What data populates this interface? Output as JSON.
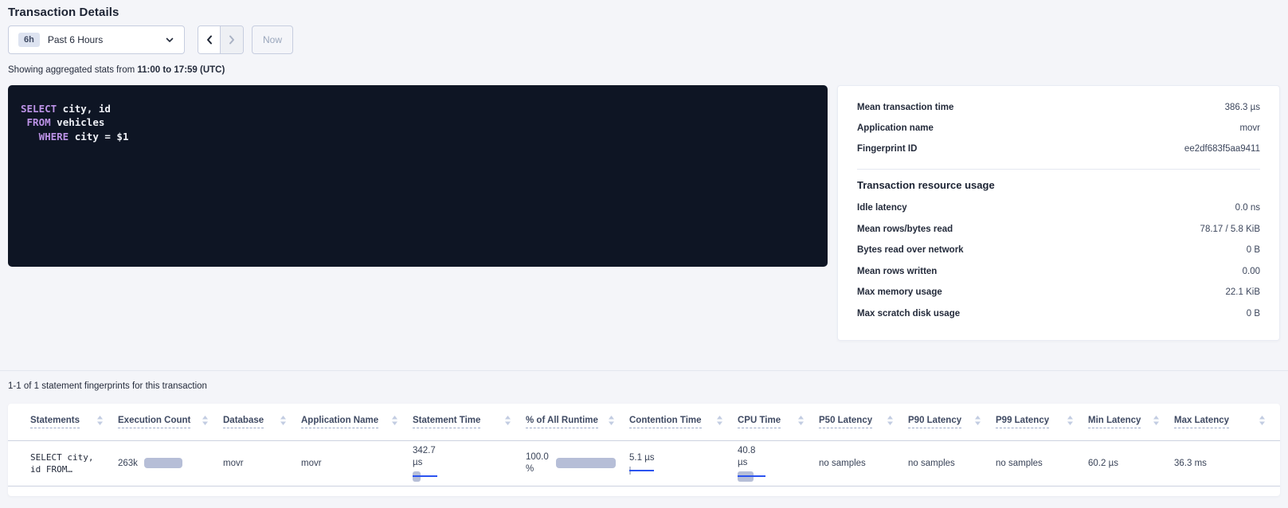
{
  "page": {
    "title": "Transaction Details"
  },
  "toolbar": {
    "time_badge": "6h",
    "time_label": "Past 6 Hours",
    "now_label": "Now"
  },
  "subtitle": {
    "prefix": "Showing aggregated stats from ",
    "range": "11:00 to 17:59 (UTC)"
  },
  "sql": {
    "text": "SELECT city, id\n FROM vehicles\n   WHERE city = $1",
    "keywords": [
      "SELECT",
      "FROM",
      "WHERE"
    ]
  },
  "summary": {
    "rows": [
      {
        "label": "Mean transaction time",
        "value": "386.3 µs"
      },
      {
        "label": "Application name",
        "value": "movr"
      },
      {
        "label": "Fingerprint ID",
        "value": "ee2df683f5aa9411"
      }
    ],
    "section_title": "Transaction resource usage",
    "resource_rows": [
      {
        "label": "Idle latency",
        "value": "0.0 ns"
      },
      {
        "label": "Mean rows/bytes read",
        "value": "78.17 / 5.8 KiB"
      },
      {
        "label": "Bytes read over network",
        "value": "0 B"
      },
      {
        "label": "Mean rows written",
        "value": "0.00"
      },
      {
        "label": "Max memory usage",
        "value": "22.1 KiB"
      },
      {
        "label": "Max scratch disk usage",
        "value": "0 B"
      }
    ]
  },
  "statements_section": {
    "count_text": "1-1 of 1 statement fingerprints for this transaction"
  },
  "table": {
    "columns": [
      "Statements",
      "Execution Count",
      "Database",
      "Application Name",
      "Statement Time",
      "% of All Runtime",
      "Contention Time",
      "CPU Time",
      "P50 Latency",
      "P90 Latency",
      "P99 Latency",
      "Min Latency",
      "Max Latency"
    ],
    "row": {
      "statement_line1": "SELECT city,",
      "statement_line2": "id FROM…",
      "execution_count": "263k",
      "database": "movr",
      "application_name": "movr",
      "statement_time": "342.7 µs",
      "pct_runtime": "100.0 %",
      "contention_time": "5.1 µs",
      "cpu_time": "40.8 µs",
      "p50_latency": "no samples",
      "p90_latency": "no samples",
      "p99_latency": "no samples",
      "min_latency": "60.2 µs",
      "max_latency": "36.3 ms"
    }
  },
  "colors": {
    "accent_blue": "#2b53f0",
    "bar_gray": "#b6bed7",
    "sql_keyword": "#bd93e8",
    "sql_bg": "#0e1524",
    "page_bg": "#f4f5f9"
  }
}
